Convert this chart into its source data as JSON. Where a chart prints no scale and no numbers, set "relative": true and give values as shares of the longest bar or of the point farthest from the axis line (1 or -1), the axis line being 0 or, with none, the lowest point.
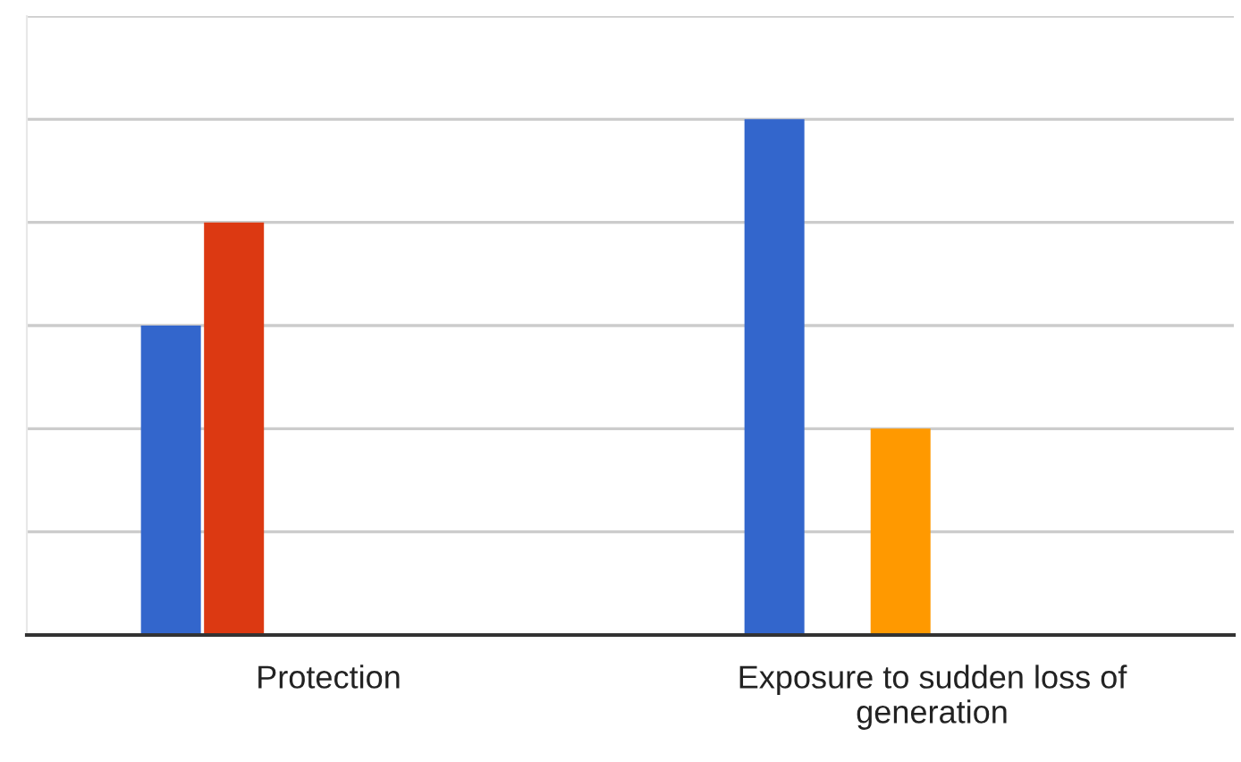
{
  "chart_data": {
    "type": "bar",
    "relative": true,
    "categories": [
      "Protection",
      "Exposure to sudden loss of\ngeneration"
    ],
    "series": [
      {
        "color": "#3366cc",
        "values": [
          0.6,
          1.0
        ]
      },
      {
        "color": "#dc3912",
        "values": [
          0.8,
          null
        ]
      },
      {
        "color": "#ff9900",
        "values": [
          null,
          0.4
        ]
      }
    ],
    "grid": "y"
  }
}
